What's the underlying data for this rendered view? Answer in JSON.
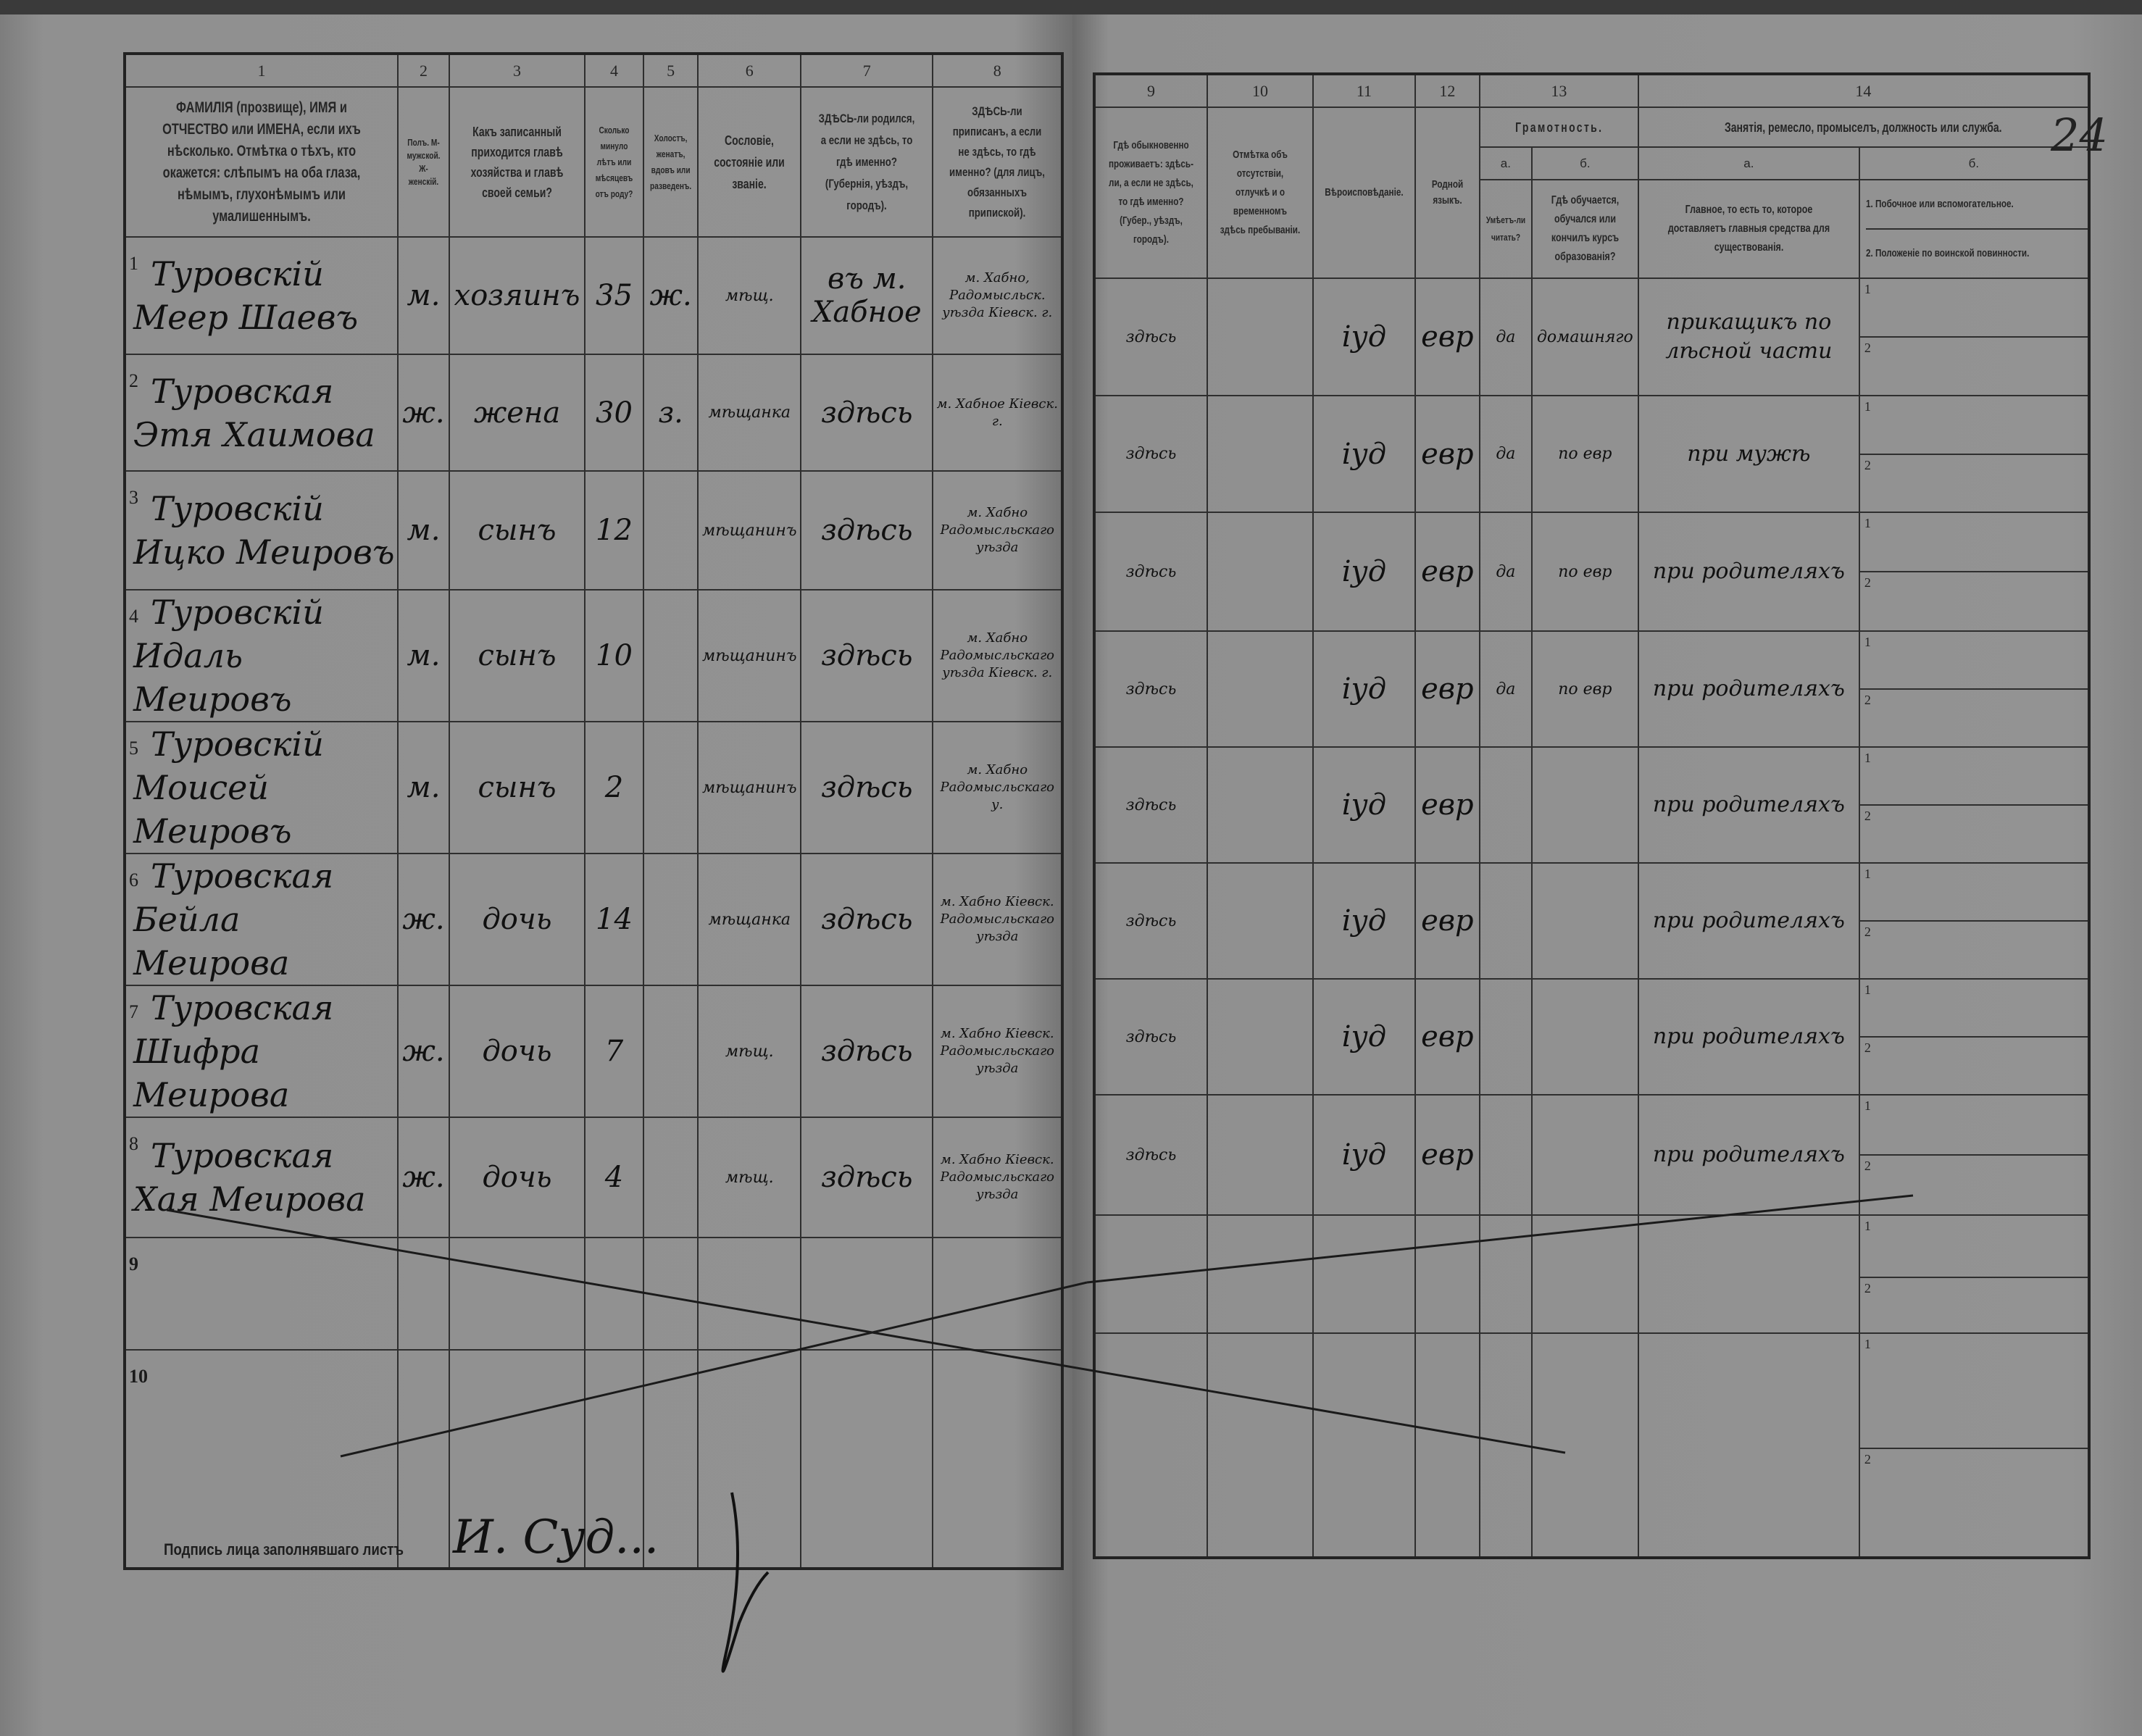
{
  "page_number": "24",
  "left_header": {
    "numbers": [
      "1",
      "2",
      "3",
      "4",
      "5",
      "6",
      "7",
      "8"
    ],
    "col1": "ФАМИЛІЯ (прозвище), ИМЯ и ОТЧЕСТВО или ИМЕНА, если ихъ нѣсколько. Отмѣтка о тѣхъ, кто окажется: слѣпымъ на оба глаза, нѣмымъ, глухонѣмымъ или умалишеннымъ.",
    "col2": "Полъ. М-мужской. Ж-женскій.",
    "col3": "Какъ записанный приходится главѣ хозяйства и главѣ своей семьи?",
    "col4": "Сколько минуло лѣтъ или мѣсяцевъ отъ роду?",
    "col5": "Холостъ, женатъ, вдовъ или разведенъ.",
    "col6": "Сословіе, состояніе или званіе.",
    "col7": "ЗДѢСЬ-ли родился, а если не здѣсь, то гдѣ именно? (Губернія, уѣздъ, городъ).",
    "col8": "ЗДѢСЬ-ли приписанъ, а если не здѣсь, то гдѣ именно? (для лицъ, обязанныхъ припиской)."
  },
  "right_header": {
    "numbers": [
      "9",
      "10",
      "11",
      "12",
      "13",
      "14"
    ],
    "col9": "Гдѣ обыкновенно проживаетъ: здѣсь-ли, а если не здѣсь, то гдѣ именно? (Губер., уѣздъ, городъ).",
    "col10": "Отмѣтка объ отсутствіи, отлучкѣ и о временномъ здѣсь пребываніи.",
    "col11": "Вѣроисповѣданіе.",
    "col12": "Родной языкъ.",
    "col13_group": "Грамотность.",
    "col13a_letter": "а.",
    "col13a": "Умѣетъ-ли читать?",
    "col13b_letter": "б.",
    "col13b": "Гдѣ обучается, обучался или кончилъ курсъ образованія?",
    "col14_group": "Занятія, ремесло, промыселъ, должность или служба.",
    "col14a_letter": "а.",
    "col14a": "Главное, то есть то, которое доставляетъ главныя средства для существованія.",
    "col14b_letter": "б.",
    "col14b_1": "1. Побочное или вспомогательное.",
    "col14b_2": "2. Положеніе по воинской повинности."
  },
  "sub_labels": [
    "1",
    "2"
  ],
  "rows": [
    {
      "n": "1",
      "surname": "Туровскій",
      "given": "Меер Шаевъ",
      "sex": "м.",
      "relation": "хозяинъ",
      "age": "35",
      "marital": "ж.",
      "estate": "мѣщ.",
      "born": "въ м. Хабное",
      "registered": "м. Хабно, Радомысльск. уѣзда Кіевск. г.",
      "residence": "здѣсь",
      "absence": "",
      "religion": "іуд",
      "language": "евр",
      "literate": "да",
      "education": "домашняго",
      "occupation": "прикащикъ по лѣсной части"
    },
    {
      "n": "2",
      "surname": "Туровская",
      "given": "Этя Хаимова",
      "sex": "ж.",
      "relation": "жена",
      "age": "30",
      "marital": "з.",
      "estate": "мѣщанка",
      "born": "здѣсь",
      "registered": "м. Хабное Кіевск. г.",
      "residence": "здѣсь",
      "absence": "",
      "religion": "іуд",
      "language": "евр",
      "literate": "да",
      "education": "по евр",
      "occupation": "при мужѣ"
    },
    {
      "n": "3",
      "surname": "Туровскій",
      "given": "Ицко Меировъ",
      "sex": "м.",
      "relation": "сынъ",
      "age": "12",
      "marital": "",
      "estate": "мѣщанинъ",
      "born": "здѣсь",
      "registered": "м. Хабно Радомысльскаго уѣзда",
      "residence": "здѣсь",
      "absence": "",
      "religion": "іуд",
      "language": "евр",
      "literate": "да",
      "education": "по евр",
      "occupation": "при родителяхъ"
    },
    {
      "n": "4",
      "surname": "Туровскій",
      "given": "Идаль Меировъ",
      "sex": "м.",
      "relation": "сынъ",
      "age": "10",
      "marital": "",
      "estate": "мѣщанинъ",
      "born": "здѣсь",
      "registered": "м. Хабно Радомысльскаго уѣзда Кіевск. г.",
      "residence": "здѣсь",
      "absence": "",
      "religion": "іуд",
      "language": "евр",
      "literate": "да",
      "education": "по евр",
      "occupation": "при родителяхъ"
    },
    {
      "n": "5",
      "surname": "Туровскій",
      "given": "Моисей Меировъ",
      "sex": "м.",
      "relation": "сынъ",
      "age": "2",
      "marital": "",
      "estate": "мѣщанинъ",
      "born": "здѣсь",
      "registered": "м. Хабно Радомысльскаго у.",
      "residence": "здѣсь",
      "absence": "",
      "religion": "іуд",
      "language": "евр",
      "literate": "",
      "education": "",
      "occupation": "при родителяхъ"
    },
    {
      "n": "6",
      "surname": "Туровская",
      "given": "Бейла Меирова",
      "sex": "ж.",
      "relation": "дочь",
      "age": "14",
      "marital": "",
      "estate": "мѣщанка",
      "born": "здѣсь",
      "registered": "м. Хабно Кіевск. Радомысльскаго уѣзда",
      "residence": "здѣсь",
      "absence": "",
      "religion": "іуд",
      "language": "евр",
      "literate": "",
      "education": "",
      "occupation": "при родителяхъ"
    },
    {
      "n": "7",
      "surname": "Туровская",
      "given": "Шифра Меирова",
      "sex": "ж.",
      "relation": "дочь",
      "age": "7",
      "marital": "",
      "estate": "мѣщ.",
      "born": "здѣсь",
      "registered": "м. Хабно Кіевск. Радомысльскаго уѣзда",
      "residence": "здѣсь",
      "absence": "",
      "religion": "іуд",
      "language": "евр",
      "literate": "",
      "education": "",
      "occupation": "при родителяхъ"
    },
    {
      "n": "8",
      "surname": "Туровская",
      "given": "Хая Меирова",
      "sex": "ж.",
      "relation": "дочь",
      "age": "4",
      "marital": "",
      "estate": "мѣщ.",
      "born": "здѣсь",
      "registered": "м. Хабно Кіевск. Радомысльскаго уѣзда",
      "residence": "здѣсь",
      "absence": "",
      "religion": "іуд",
      "language": "евр",
      "literate": "",
      "education": "",
      "occupation": "при родителяхъ"
    }
  ],
  "empty_rows": [
    "9",
    "10"
  ],
  "signature": {
    "label": "Подпись лица заполнявшаго листъ",
    "handwritten": "И. Суд..."
  },
  "colors": {
    "paper": "#8e8e8e",
    "background": "#3a3a3a",
    "ink": "#101010",
    "rule": "#2e2e2e"
  }
}
